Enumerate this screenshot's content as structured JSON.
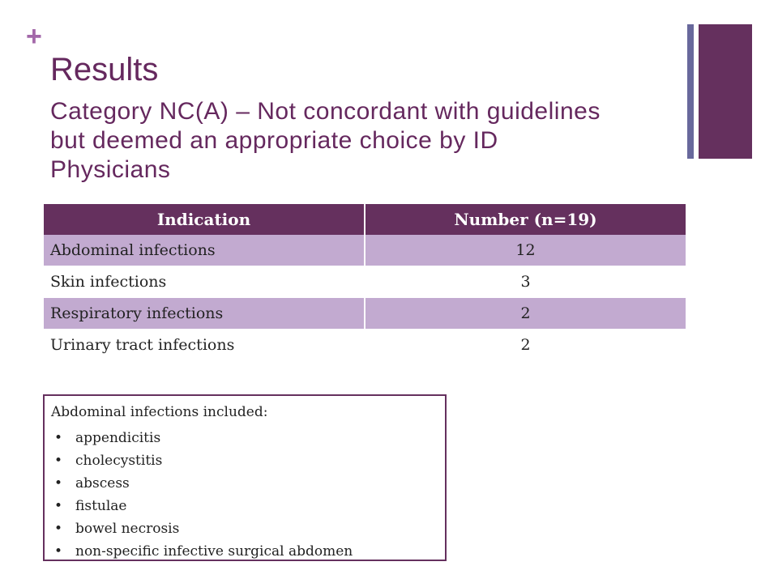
{
  "slide": {
    "plus_symbol": "+",
    "title": "Results",
    "subtitle": "Category NC(A) – Not concordant with guidelines but deemed an appropriate choice by ID Physicians"
  },
  "table": {
    "headers": [
      "Indication",
      "Number (n=19)"
    ],
    "rows": [
      [
        "Abdominal infections",
        "12"
      ],
      [
        "Skin infections",
        "3"
      ],
      [
        "Respiratory infections",
        "2"
      ],
      [
        "Urinary tract infections",
        "2"
      ]
    ]
  },
  "note": {
    "heading": "Abdominal infections included:",
    "bullet": "•",
    "items": [
      "appendicitis",
      "cholecystitis",
      "abscess",
      "fistulae",
      "bowel necrosis",
      "non-specific infective surgical abdomen"
    ]
  },
  "colors": {
    "accent_plus": "#a368a9",
    "title": "#65285e",
    "header_bg": "#65305e",
    "shaded_row": "#c2aad0",
    "thin_bar": "#68689c"
  }
}
